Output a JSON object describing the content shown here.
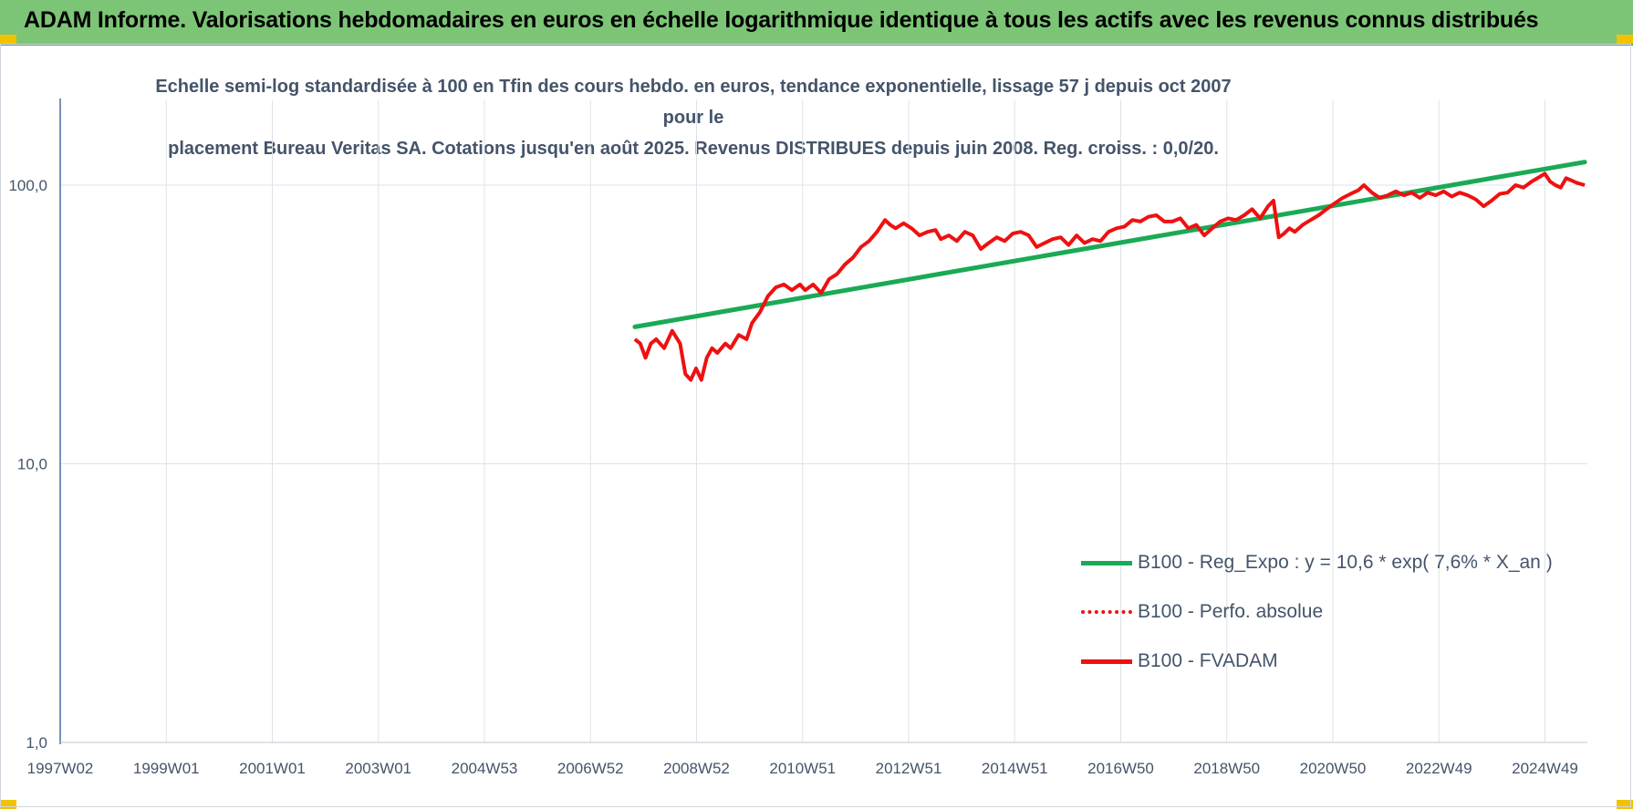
{
  "header": {
    "title": "ADAM Informe. Valorisations hebdomadaires en euros en échelle logarithmique identique à tous les actifs avec les revenus connus distribués"
  },
  "chart_subtitle": {
    "line1": "Echelle semi-log standardisée à 100 en Tfin des cours hebdo. en euros, tendance exponentielle, lissage 57 j depuis oct 2007 pour le",
    "line2": "placement Bureau Veritas SA. Cotations jusqu'en août 2025. Revenus DISTRIBUES depuis juin 2008. Reg. croiss. : 0,0/20."
  },
  "colors": {
    "header_bg": "#7cc576",
    "trend": "#1aaa55",
    "fvadam": "#ee1111",
    "perfo": "#ee1111",
    "axis_text": "#44546a",
    "grid": "#dde3ea"
  },
  "chart_data": {
    "type": "line",
    "y_scale": "log",
    "ylim": [
      1,
      200
    ],
    "y_ticks": [
      "1,0",
      "10,0",
      "100,0"
    ],
    "x_ticks": [
      "1997W02",
      "1999W01",
      "2001W01",
      "2003W01",
      "2004W53",
      "2006W52",
      "2008W52",
      "2010W51",
      "2012W51",
      "2014W51",
      "2016W50",
      "2018W50",
      "2020W50",
      "2022W49",
      "2024W49"
    ],
    "x_range": [
      1997.0,
      2025.7
    ],
    "grid": true,
    "legend_position": "bottom-right",
    "series": [
      {
        "name": "B100 - Reg_Expo : y = 10,6 * exp( 7,6% *  X_an )",
        "kind": "trend",
        "x": [
          2007.8,
          2025.65
        ],
        "y": [
          31,
          121
        ]
      },
      {
        "name": "B100 - Perfo. absolue",
        "kind": "perfo",
        "x": [],
        "y": []
      },
      {
        "name": "B100 - FVADAM",
        "kind": "fvadam",
        "x": [
          2007.8,
          2007.9,
          2008.0,
          2008.1,
          2008.2,
          2008.35,
          2008.5,
          2008.65,
          2008.75,
          2008.85,
          2008.95,
          2009.05,
          2009.15,
          2009.25,
          2009.35,
          2009.5,
          2009.6,
          2009.75,
          2009.9,
          2010.0,
          2010.15,
          2010.3,
          2010.45,
          2010.6,
          2010.75,
          2010.9,
          2011.0,
          2011.15,
          2011.3,
          2011.45,
          2011.6,
          2011.75,
          2011.9,
          2012.05,
          2012.2,
          2012.35,
          2012.5,
          2012.6,
          2012.7,
          2012.85,
          2013.0,
          2013.15,
          2013.3,
          2013.45,
          2013.55,
          2013.7,
          2013.85,
          2014.0,
          2014.15,
          2014.3,
          2014.45,
          2014.6,
          2014.75,
          2014.9,
          2015.05,
          2015.2,
          2015.35,
          2015.5,
          2015.65,
          2015.8,
          2015.95,
          2016.1,
          2016.25,
          2016.4,
          2016.55,
          2016.7,
          2016.85,
          2017.0,
          2017.15,
          2017.3,
          2017.45,
          2017.6,
          2017.75,
          2017.9,
          2018.05,
          2018.2,
          2018.35,
          2018.5,
          2018.65,
          2018.8,
          2018.95,
          2019.1,
          2019.25,
          2019.4,
          2019.55,
          2019.7,
          2019.8,
          2019.9,
          2020.0,
          2020.1,
          2020.2,
          2020.35,
          2020.5,
          2020.65,
          2020.8,
          2020.95,
          2021.1,
          2021.25,
          2021.4,
          2021.5,
          2021.65,
          2021.8,
          2021.95,
          2022.1,
          2022.25,
          2022.4,
          2022.55,
          2022.7,
          2022.85,
          2023.0,
          2023.15,
          2023.3,
          2023.45,
          2023.6,
          2023.75,
          2023.9,
          2024.05,
          2024.2,
          2024.35,
          2024.5,
          2024.65,
          2024.8,
          2024.9,
          2025.0,
          2025.1,
          2025.2,
          2025.3,
          2025.4,
          2025.5,
          2025.65
        ],
        "y": [
          28,
          27,
          24,
          27,
          28,
          26,
          30,
          27,
          21,
          20,
          22,
          20,
          24,
          26,
          25,
          27,
          26,
          29,
          28,
          32,
          35,
          40,
          43,
          44,
          42,
          44,
          42,
          44,
          41,
          46,
          48,
          52,
          55,
          60,
          63,
          68,
          75,
          72,
          70,
          73,
          70,
          66,
          68,
          69,
          64,
          66,
          63,
          68,
          66,
          59,
          62,
          65,
          63,
          67,
          68,
          66,
          60,
          62,
          64,
          65,
          61,
          66,
          62,
          64,
          63,
          68,
          70,
          71,
          75,
          74,
          77,
          78,
          74,
          74,
          76,
          70,
          72,
          66,
          70,
          74,
          76,
          75,
          78,
          82,
          76,
          84,
          88,
          65,
          67,
          70,
          68,
          72,
          75,
          78,
          82,
          86,
          90,
          93,
          96,
          100,
          94,
          90,
          92,
          95,
          92,
          94,
          90,
          94,
          92,
          95,
          91,
          94,
          92,
          89,
          84,
          88,
          93,
          94,
          100,
          98,
          103,
          107,
          110,
          103,
          100,
          98,
          106,
          104,
          102,
          100
        ]
      }
    ]
  }
}
